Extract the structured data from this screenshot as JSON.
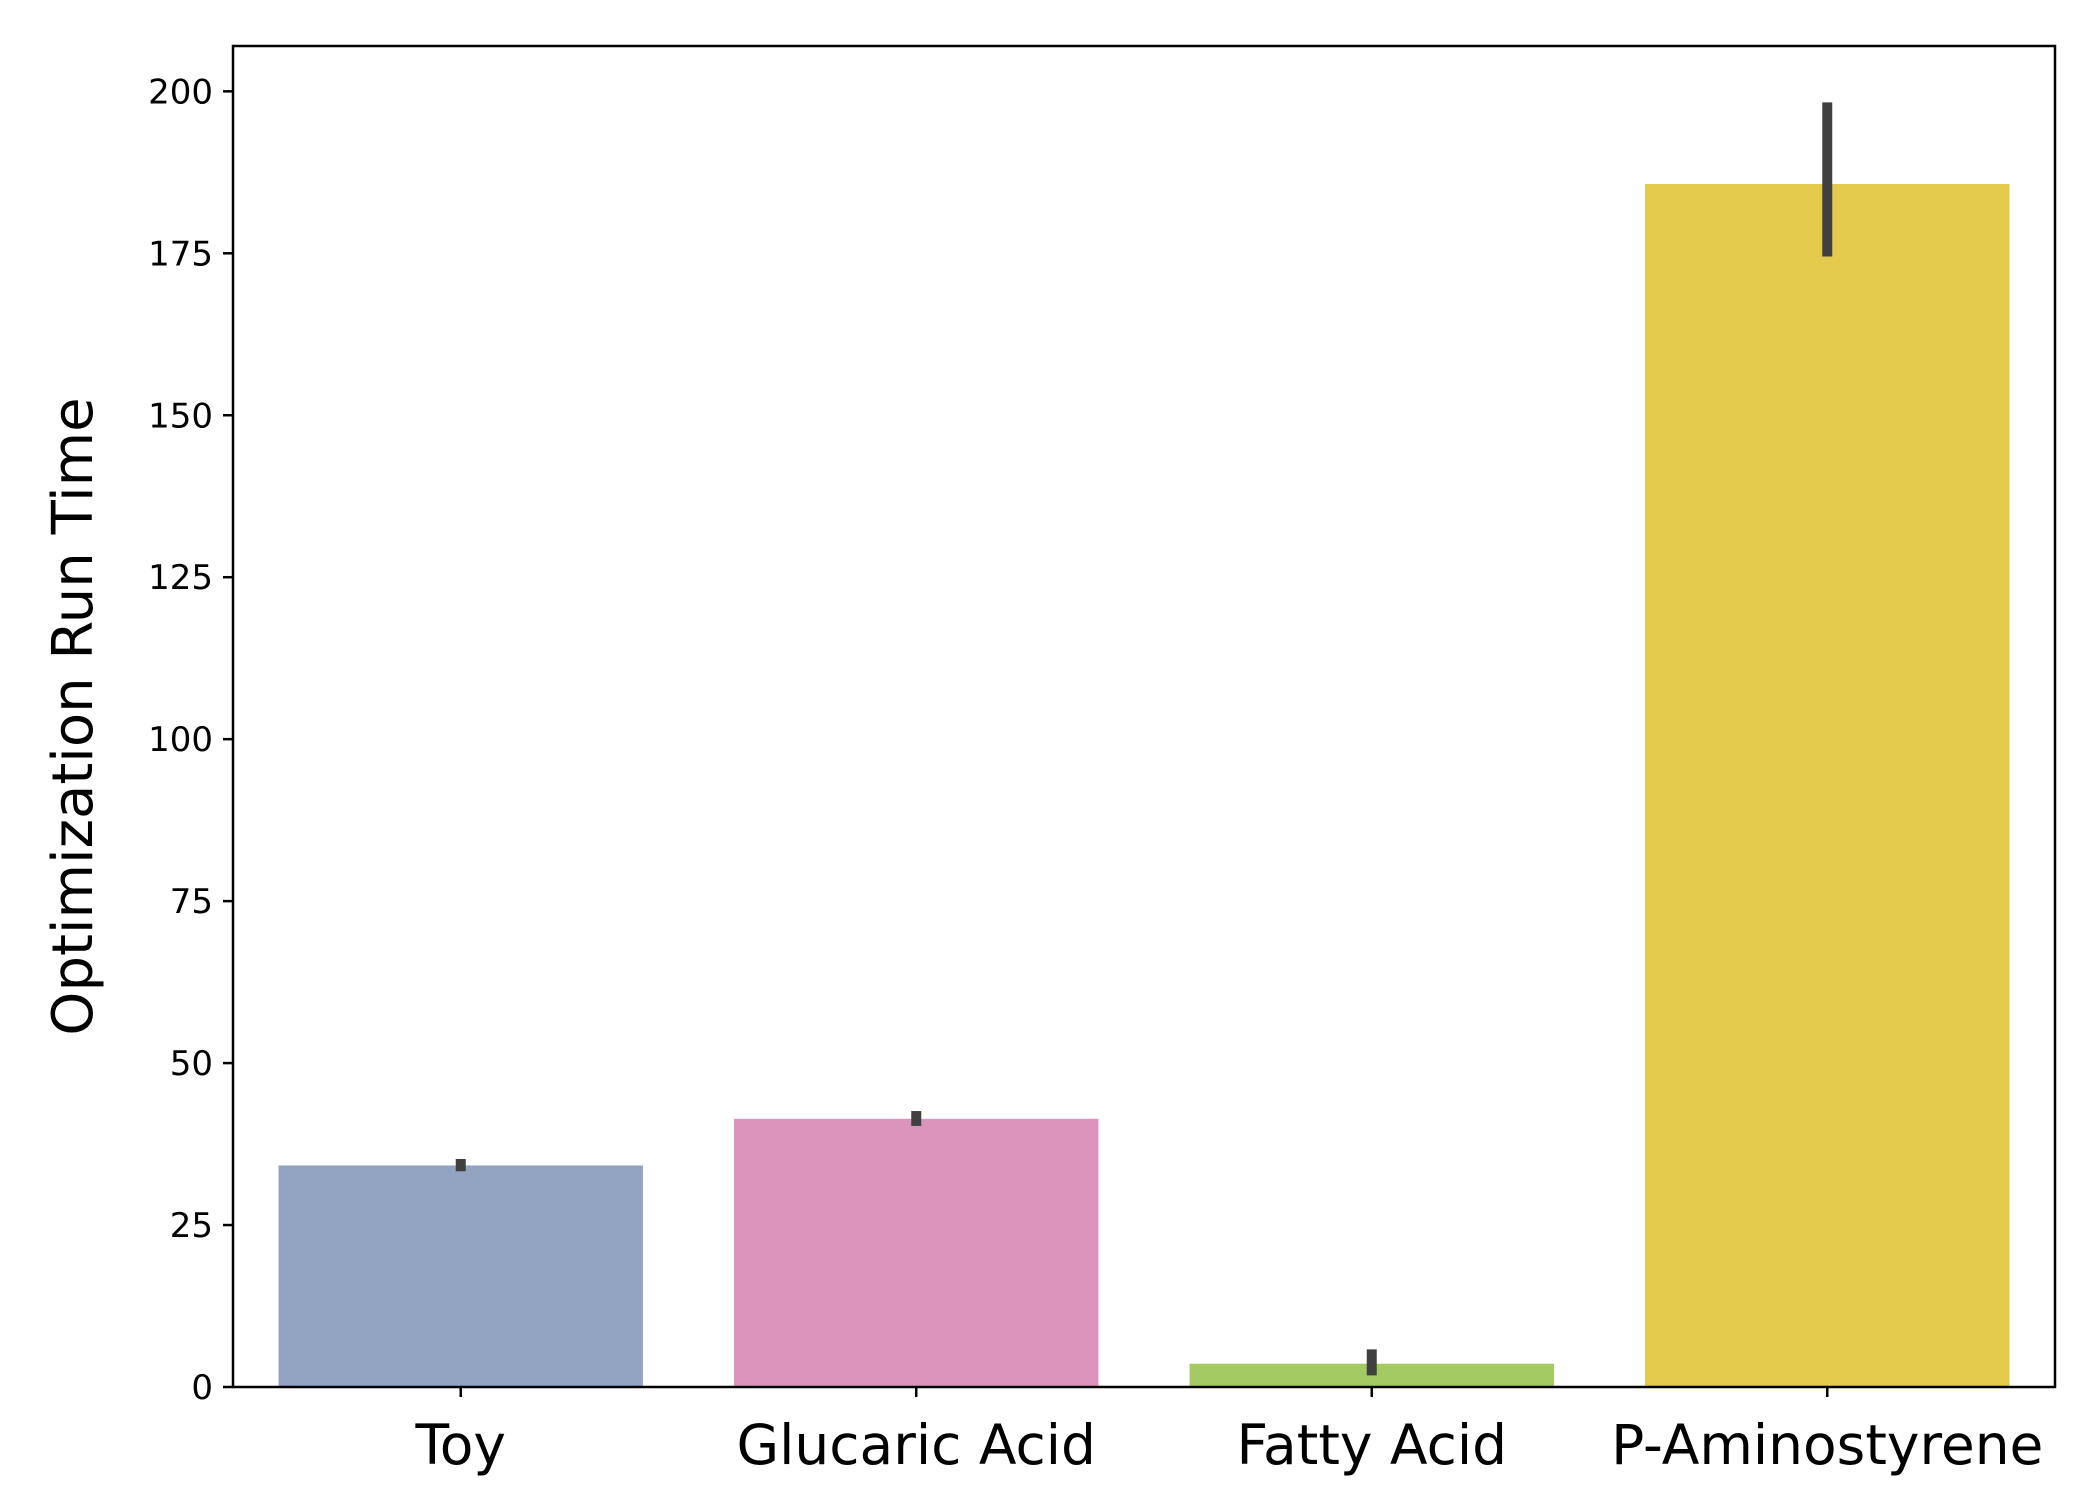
{
  "chart_data": {
    "type": "bar",
    "title": "",
    "xlabel": "",
    "ylabel": "Optimization Run Time",
    "categories": [
      "Toy",
      "Glucaric Acid",
      "Fatty Acid",
      "P-Aminostyrene"
    ],
    "values": [
      34.2,
      41.4,
      3.6,
      185.7
    ],
    "error_low": [
      33.3,
      40.3,
      1.8,
      174.5
    ],
    "error_high": [
      35.2,
      42.6,
      5.8,
      198.3
    ],
    "colors": [
      "#93a3c2",
      "#db95bd",
      "#a4ca63",
      "#e3ca4a"
    ],
    "error_color": "#404040",
    "ylim": [
      0,
      207
    ],
    "yticks": [
      0,
      25,
      50,
      75,
      100,
      125,
      150,
      175,
      200
    ],
    "grid": false
  }
}
